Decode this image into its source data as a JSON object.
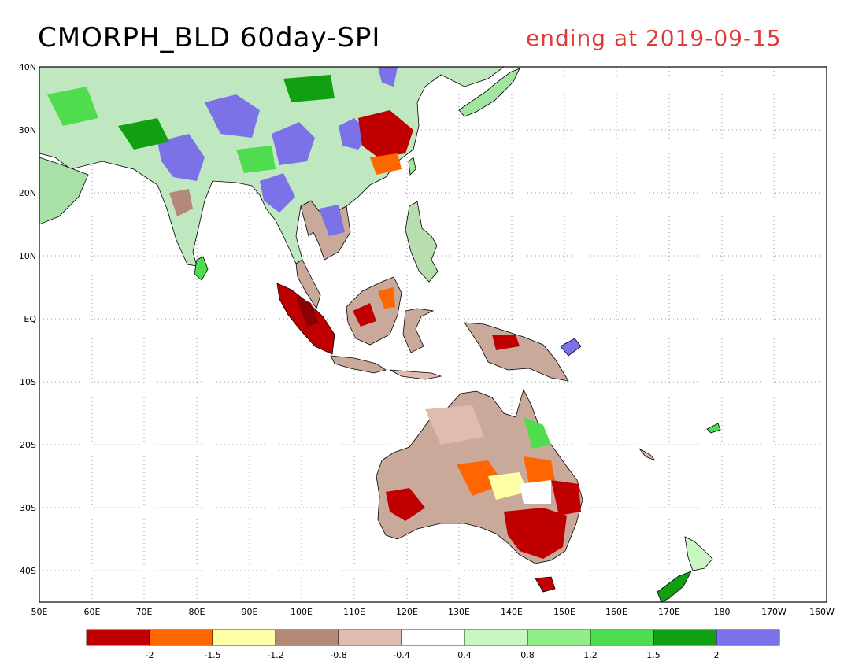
{
  "title": {
    "main": "CMORPH_BLD 60day-SPI",
    "ending": "ending at 2019-09-15"
  },
  "axes": {
    "lat_labels": [
      "40N",
      "30N",
      "20N",
      "10N",
      "EQ",
      "10S",
      "20S",
      "30S",
      "40S"
    ],
    "lon_labels": [
      "50E",
      "60E",
      "70E",
      "80E",
      "90E",
      "100E",
      "110E",
      "120E",
      "130E",
      "140E",
      "150E",
      "160E",
      "170E",
      "180",
      "170W",
      "160W"
    ]
  },
  "legend": {
    "colors": [
      "#c00000",
      "#ff6600",
      "#ffffa8",
      "#b38a7a",
      "#e0bcb0",
      "#ffffff",
      "#c8f8c0",
      "#90ee88",
      "#4fdd4f",
      "#11a011",
      "#7b72e8"
    ],
    "labels": [
      "-2",
      "-1.5",
      "-1.2",
      "-0.8",
      "-0.4",
      "0.4",
      "0.8",
      "1.2",
      "1.5",
      "2"
    ]
  }
}
